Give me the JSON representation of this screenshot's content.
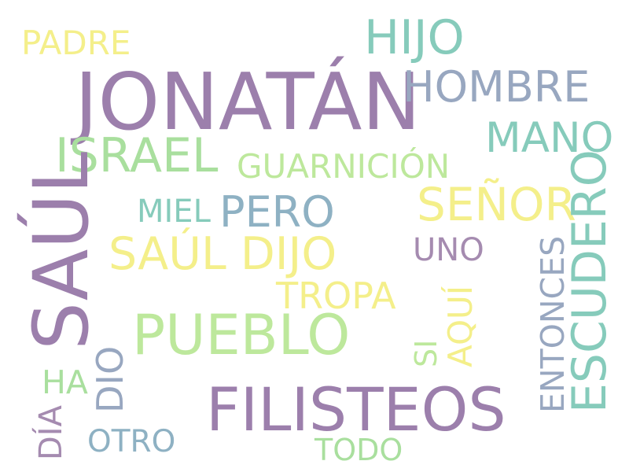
{
  "words": {
    "jonatan": "JONATÁN",
    "saul": "SAÚL",
    "filisteos": "FILISTEOS",
    "pueblo": "PUEBLO",
    "saul_dijo": "SAÚL DIJO",
    "israel": "ISRAEL",
    "senor": "SEÑOR",
    "hijo": "HIJO",
    "hombre": "HOMBRE",
    "mano": "MANO",
    "escudero": "ESCUDERO",
    "pero": "PERO",
    "guarnicion": "GUARNICIÓN",
    "miel": "MIEL",
    "padre": "PADRE",
    "uno": "UNO",
    "tropa": "TROPA",
    "entonces": "ENTONCES",
    "aqui": "AQUÍ",
    "si": "SI",
    "dio": "DIO",
    "ha": "HA",
    "dia": "DÍA",
    "otro": "OTRO",
    "todo": "TODO"
  },
  "colors": {
    "purple": "#9c7fac",
    "teal": "#86cbbb",
    "green": "#a9df9e",
    "yellow": "#f4ef8a",
    "steel": "#8eb1c3",
    "slate": "#98a7c0",
    "background": "#ffffff"
  }
}
